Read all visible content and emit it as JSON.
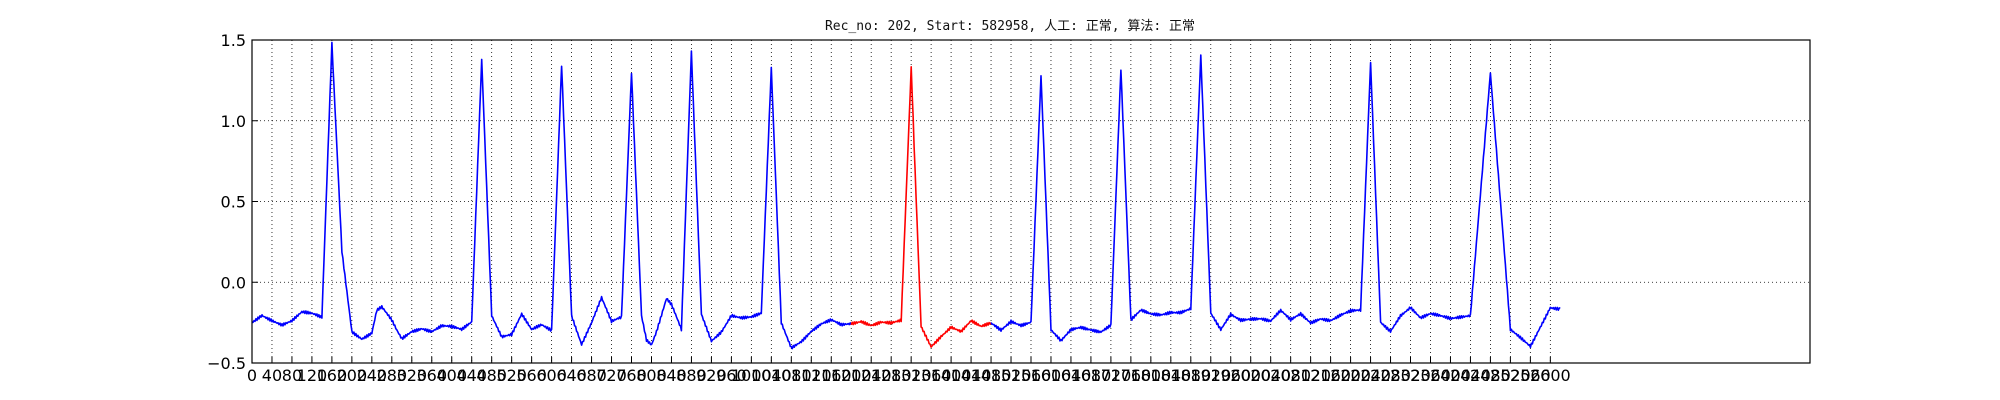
{
  "chart_data": {
    "type": "line",
    "title": "Rec_no: 202, Start: 582958, 人工: 正常, 算法: 正常",
    "xlabel": "",
    "ylabel": "",
    "xlim": [
      0,
      3120
    ],
    "ylim": [
      -0.5,
      1.5
    ],
    "grid": true,
    "grid_style": "dotted",
    "yticks": [
      -0.5,
      0.0,
      0.5,
      1.0,
      1.5
    ],
    "ytick_labels": [
      "−0.5",
      "0.0",
      "0.5",
      "1.0",
      "1.5"
    ],
    "xticks": [
      0,
      40,
      80,
      120,
      160,
      200,
      240,
      280,
      320,
      360,
      400,
      440,
      480,
      520,
      560,
      600,
      640,
      680,
      720,
      760,
      800,
      840,
      880,
      920,
      960,
      1000,
      1040,
      1080,
      1120,
      1160,
      1200,
      1240,
      1280,
      1320,
      1360,
      1400,
      1440,
      1480,
      1520,
      1560,
      1600,
      1640,
      1680,
      1720,
      1760,
      1800,
      1840,
      1880,
      1920,
      1960,
      2000,
      2040,
      2080,
      2120,
      2160,
      2200,
      2240,
      2280,
      2320,
      2360,
      2400,
      2440,
      2480,
      2520,
      2560,
      2600
    ],
    "signal_end": 2620,
    "highlight_range": [
      1200,
      1480
    ],
    "colors": {
      "normal": "#0000ff",
      "highlight": "#ff0000",
      "grid": "#000000"
    },
    "series": [
      {
        "x": [
          0,
          20,
          40,
          60,
          80,
          100,
          120,
          140,
          160,
          180,
          200,
          220,
          240,
          250,
          260,
          270,
          280,
          290,
          300,
          320,
          340,
          360,
          380,
          400,
          420,
          440,
          460,
          480,
          500,
          520,
          540,
          560,
          580,
          600,
          620,
          640,
          660,
          680,
          700,
          720,
          740,
          760,
          780,
          790,
          800,
          810,
          820,
          830,
          840,
          860,
          880,
          900,
          920,
          940,
          960,
          980,
          1000,
          1020,
          1040,
          1060,
          1080,
          1100,
          1120,
          1140,
          1160,
          1180,
          1200,
          1220,
          1240,
          1260,
          1280,
          1300,
          1320,
          1340,
          1360,
          1380,
          1400,
          1420,
          1440,
          1460,
          1480,
          1500,
          1520,
          1540,
          1560,
          1580,
          1600,
          1620,
          1640,
          1660,
          1680,
          1700,
          1720,
          1740,
          1760,
          1780,
          1800,
          1820,
          1840,
          1860,
          1880,
          1900,
          1920,
          1940,
          1960,
          1980,
          2000,
          2020,
          2040,
          2060,
          2080,
          2100,
          2120,
          2140,
          2160,
          2180,
          2200,
          2220,
          2240,
          2260,
          2280,
          2300,
          2320,
          2340,
          2360,
          2400,
          2440,
          2480,
          2520,
          2560,
          2600,
          2620
        ],
        "y": [
          -0.25,
          -0.2,
          -0.23,
          -0.26,
          -0.24,
          -0.19,
          -0.2,
          -0.22,
          1.48,
          0.2,
          -0.3,
          -0.35,
          -0.32,
          -0.18,
          -0.16,
          -0.2,
          -0.24,
          -0.3,
          -0.35,
          -0.3,
          -0.28,
          -0.3,
          -0.27,
          -0.28,
          -0.3,
          -0.25,
          1.38,
          -0.2,
          -0.33,
          -0.32,
          -0.2,
          -0.3,
          -0.27,
          -0.3,
          1.35,
          -0.2,
          -0.38,
          -0.25,
          -0.1,
          -0.25,
          -0.22,
          1.3,
          -0.2,
          -0.35,
          -0.38,
          -0.3,
          -0.2,
          -0.1,
          -0.14,
          -0.3,
          1.42,
          -0.2,
          -0.36,
          -0.3,
          -0.2,
          -0.22,
          -0.22,
          -0.2,
          1.32,
          -0.25,
          -0.4,
          -0.36,
          -0.3,
          -0.26,
          -0.24,
          -0.27,
          -0.26,
          -0.24,
          -0.26,
          -0.24,
          -0.25,
          -0.24,
          1.32,
          -0.28,
          -0.4,
          -0.33,
          -0.27,
          -0.3,
          -0.24,
          -0.28,
          -0.26,
          -0.3,
          -0.24,
          -0.26,
          -0.24,
          1.28,
          -0.3,
          -0.37,
          -0.3,
          -0.28,
          -0.29,
          -0.3,
          -0.26,
          1.32,
          -0.24,
          -0.18,
          -0.2,
          -0.2,
          -0.18,
          -0.18,
          -0.16,
          1.4,
          -0.2,
          -0.3,
          -0.2,
          -0.23,
          -0.22,
          -0.22,
          -0.24,
          -0.18,
          -0.24,
          -0.2,
          -0.25,
          -0.22,
          -0.23,
          -0.2,
          -0.18,
          -0.18,
          1.35,
          -0.25,
          -0.3,
          -0.2,
          -0.15,
          -0.22,
          -0.2,
          -0.23,
          -0.2,
          1.3,
          -0.3,
          -0.4,
          -0.15,
          -0.16
        ]
      }
    ]
  }
}
